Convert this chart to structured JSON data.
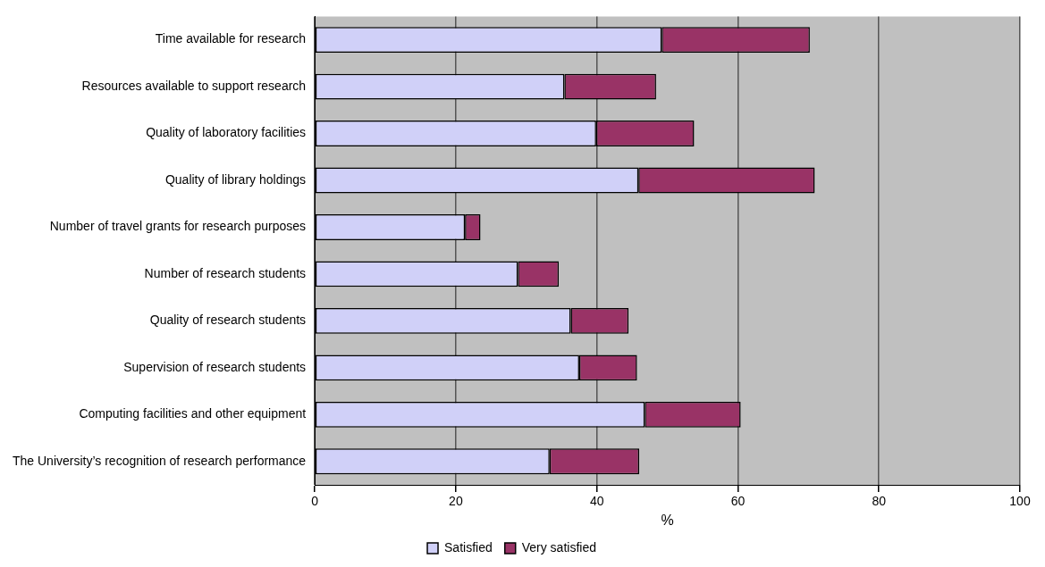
{
  "chart_data": {
    "type": "bar",
    "orientation": "horizontal",
    "stacked": true,
    "xlabel": "%",
    "categories": [
      "Time available for research",
      "Resources available to support research",
      "Quality of laboratory facilities",
      "Quality of library holdings",
      "Number of travel grants for research purposes",
      "Number of research students",
      "Quality of research students",
      "Supervision of research students",
      "Computing facilities and other equipment",
      "The University’s recognition of research performance"
    ],
    "series": [
      {
        "name": "Satisfied",
        "color": "#d0d0f8",
        "values": [
          49.2,
          35.4,
          39.9,
          45.9,
          21.3,
          28.8,
          36.3,
          37.5,
          46.8,
          33.3
        ]
      },
      {
        "name": "Very satisfied",
        "color": "#993366",
        "values": [
          21.0,
          13.0,
          13.9,
          25.0,
          2.2,
          5.8,
          8.2,
          8.2,
          13.6,
          12.7
        ]
      }
    ],
    "xlim": [
      0,
      100
    ],
    "xticks": [
      0,
      20,
      40,
      60,
      80,
      100
    ],
    "grid": "x",
    "legend": "bottom"
  }
}
